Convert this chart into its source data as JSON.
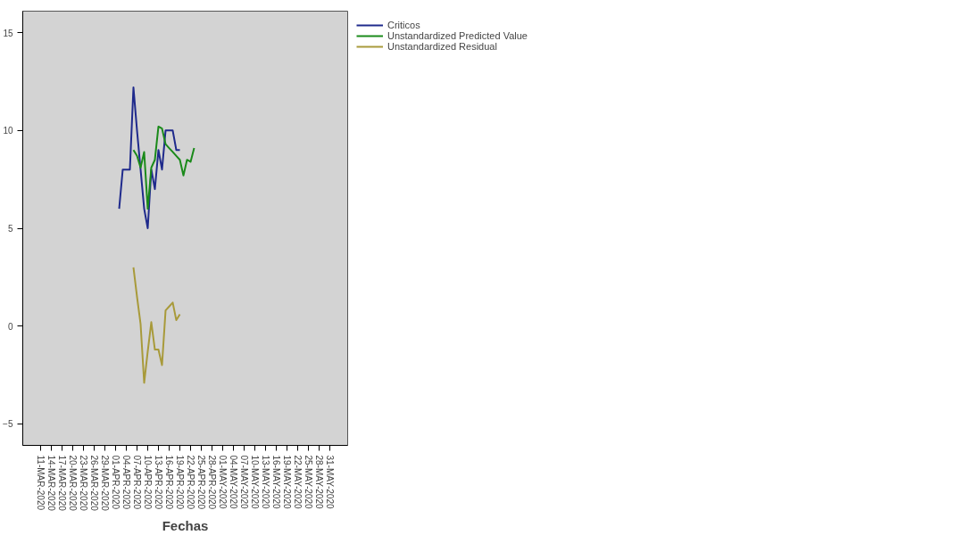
{
  "chart_data": {
    "type": "line",
    "xlabel": "Fechas",
    "xlim": [
      "2020-03-06",
      "2020-06-05"
    ],
    "ylim": [
      -6.1,
      16.1
    ],
    "yticks": [
      -5,
      0,
      5,
      10,
      15
    ],
    "xticks": [
      {
        "value": "2020-03-11",
        "label": "11-MAR-2020"
      },
      {
        "value": "2020-03-14",
        "label": "14-MAR-2020"
      },
      {
        "value": "2020-03-17",
        "label": "17-MAR-2020"
      },
      {
        "value": "2020-03-20",
        "label": "20-MAR-2020"
      },
      {
        "value": "2020-03-23",
        "label": "23-MAR-2020"
      },
      {
        "value": "2020-03-26",
        "label": "26-MAR-2020"
      },
      {
        "value": "2020-03-29",
        "label": "29-MAR-2020"
      },
      {
        "value": "2020-04-01",
        "label": "01-APR-2020"
      },
      {
        "value": "2020-04-04",
        "label": "04-APR-2020"
      },
      {
        "value": "2020-04-07",
        "label": "07-APR-2020"
      },
      {
        "value": "2020-04-10",
        "label": "10-APR-2020"
      },
      {
        "value": "2020-04-13",
        "label": "13-APR-2020"
      },
      {
        "value": "2020-04-16",
        "label": "16-APR-2020"
      },
      {
        "value": "2020-04-19",
        "label": "19-APR-2020"
      },
      {
        "value": "2020-04-22",
        "label": "22-APR-2020"
      },
      {
        "value": "2020-04-25",
        "label": "25-APR-2020"
      },
      {
        "value": "2020-04-28",
        "label": "28-APR-2020"
      },
      {
        "value": "2020-05-01",
        "label": "01-MAY-2020"
      },
      {
        "value": "2020-05-04",
        "label": "04-MAY-2020"
      },
      {
        "value": "2020-05-07",
        "label": "07-MAY-2020"
      },
      {
        "value": "2020-05-10",
        "label": "10-MAY-2020"
      },
      {
        "value": "2020-05-13",
        "label": "13-MAY-2020"
      },
      {
        "value": "2020-05-16",
        "label": "16-MAY-2020"
      },
      {
        "value": "2020-05-19",
        "label": "19-MAY-2020"
      },
      {
        "value": "2020-05-22",
        "label": "22-MAY-2020"
      },
      {
        "value": "2020-05-25",
        "label": "25-MAY-2020"
      },
      {
        "value": "2020-05-28",
        "label": "28-MAY-2020"
      },
      {
        "value": "2020-05-31",
        "label": "31-MAY-2020"
      }
    ],
    "grid": false,
    "legend": "top right",
    "marker": "none",
    "line_style": "solid",
    "series": [
      {
        "name": "Criticos",
        "color": "#1f2a8c",
        "x": [
          "2020-04-02",
          "2020-04-03",
          "2020-04-04",
          "2020-04-05",
          "2020-04-06",
          "2020-04-07",
          "2020-04-08",
          "2020-04-09",
          "2020-04-10",
          "2020-04-11",
          "2020-04-12",
          "2020-04-13",
          "2020-04-14",
          "2020-04-15",
          "2020-04-16",
          "2020-04-17",
          "2020-04-18",
          "2020-04-19"
        ],
        "values": [
          6,
          8,
          8,
          8,
          12.2,
          10,
          8,
          6,
          5,
          8,
          7,
          9,
          8,
          10,
          10,
          10,
          9,
          9
        ]
      },
      {
        "name": "Unstandardized Predicted Value",
        "color": "#1a8a1a",
        "x": [
          "2020-04-06",
          "2020-04-07",
          "2020-04-08",
          "2020-04-09",
          "2020-04-10",
          "2020-04-11",
          "2020-04-12",
          "2020-04-13",
          "2020-04-14",
          "2020-04-15",
          "2020-04-16",
          "2020-04-17",
          "2020-04-18",
          "2020-04-19",
          "2020-04-20",
          "2020-04-21",
          "2020-04-22",
          "2020-04-23"
        ],
        "values": [
          9.0,
          8.7,
          8.1,
          8.9,
          6.0,
          8.1,
          8.5,
          10.2,
          10.1,
          9.3,
          9.1,
          8.9,
          8.7,
          8.5,
          7.7,
          8.5,
          8.4,
          9.1
        ]
      },
      {
        "name": "Unstandardized Residual",
        "color": "#a89a3a",
        "x": [
          "2020-04-06",
          "2020-04-07",
          "2020-04-08",
          "2020-04-09",
          "2020-04-10",
          "2020-04-11",
          "2020-04-12",
          "2020-04-13",
          "2020-04-14",
          "2020-04-15",
          "2020-04-16",
          "2020-04-17",
          "2020-04-18",
          "2020-04-19"
        ],
        "values": [
          3.0,
          1.5,
          0.1,
          -2.9,
          -1.3,
          0.2,
          -1.2,
          -1.2,
          -2.0,
          0.8,
          1.0,
          1.2,
          0.3,
          0.6
        ]
      }
    ]
  }
}
